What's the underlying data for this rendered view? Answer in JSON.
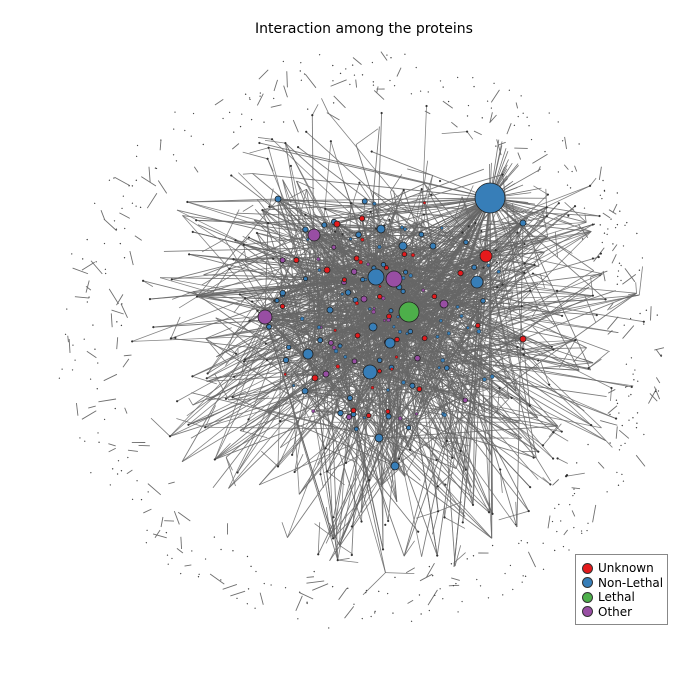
{
  "title": "Interaction among the proteins",
  "legend": [
    {
      "label": "Unknown",
      "color": "#e41a1c"
    },
    {
      "label": "Non-Lethal",
      "color": "#377eb8"
    },
    {
      "label": "Lethal",
      "color": "#4daf4a"
    },
    {
      "label": "Other",
      "color": "#984ea3"
    }
  ],
  "edge_color": "#666666"
}
